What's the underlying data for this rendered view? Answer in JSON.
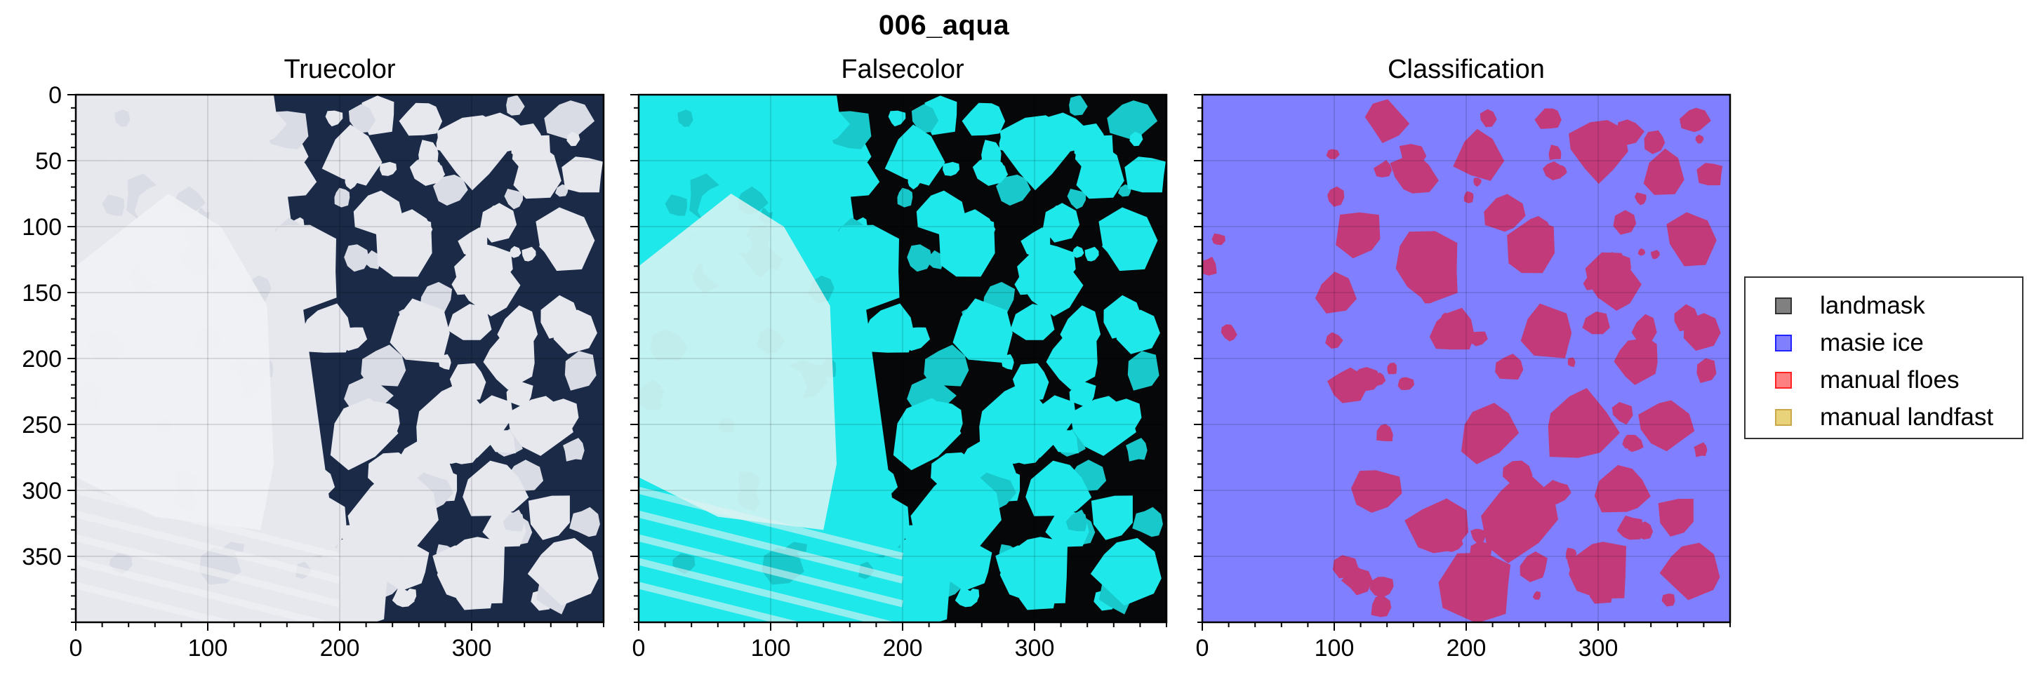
{
  "figure": {
    "suptitle": "006_aqua"
  },
  "chart_data": [
    {
      "type": "image",
      "title": "Truecolor",
      "xlim": [
        0,
        400
      ],
      "ylim": [
        400,
        0
      ],
      "xticks": [
        0,
        100,
        200,
        300
      ],
      "yticks": [
        0,
        50,
        100,
        150,
        200,
        250,
        300,
        350
      ],
      "show_yticklabels": true,
      "grid": true,
      "palette": {
        "background": "#1b2a47",
        "ice": "#e6e8ee",
        "cloud": "#f1f2f4"
      }
    },
    {
      "type": "image",
      "title": "Falsecolor",
      "xlim": [
        0,
        400
      ],
      "ylim": [
        400,
        0
      ],
      "xticks": [
        0,
        100,
        200,
        300
      ],
      "yticks": [
        0,
        50,
        100,
        150,
        200,
        250,
        300,
        350
      ],
      "show_yticklabels": false,
      "grid": true,
      "palette": {
        "background": "#050708",
        "ice": "#1ee8ea",
        "cloud": "#dff3f3"
      }
    },
    {
      "type": "image",
      "title": "Classification",
      "xlim": [
        0,
        400
      ],
      "ylim": [
        400,
        0
      ],
      "xticks": [
        0,
        100,
        200,
        300
      ],
      "yticks": [
        0,
        50,
        100,
        150,
        200,
        250,
        300,
        350
      ],
      "show_yticklabels": false,
      "grid": true,
      "palette": {
        "background": "#7f7fff",
        "ice": "#c23a79"
      }
    }
  ],
  "legend": {
    "placement": "right",
    "items": [
      {
        "label": "landmask",
        "color": "#808080",
        "edge": "#333333"
      },
      {
        "label": "masie ice",
        "color": "#8080ff",
        "edge": "#2222ff"
      },
      {
        "label": "manual floes",
        "color": "#ff8080",
        "edge": "#ff2222"
      },
      {
        "label": "manual landfast",
        "color": "#e8d27a",
        "edge": "#caa84a"
      }
    ]
  }
}
